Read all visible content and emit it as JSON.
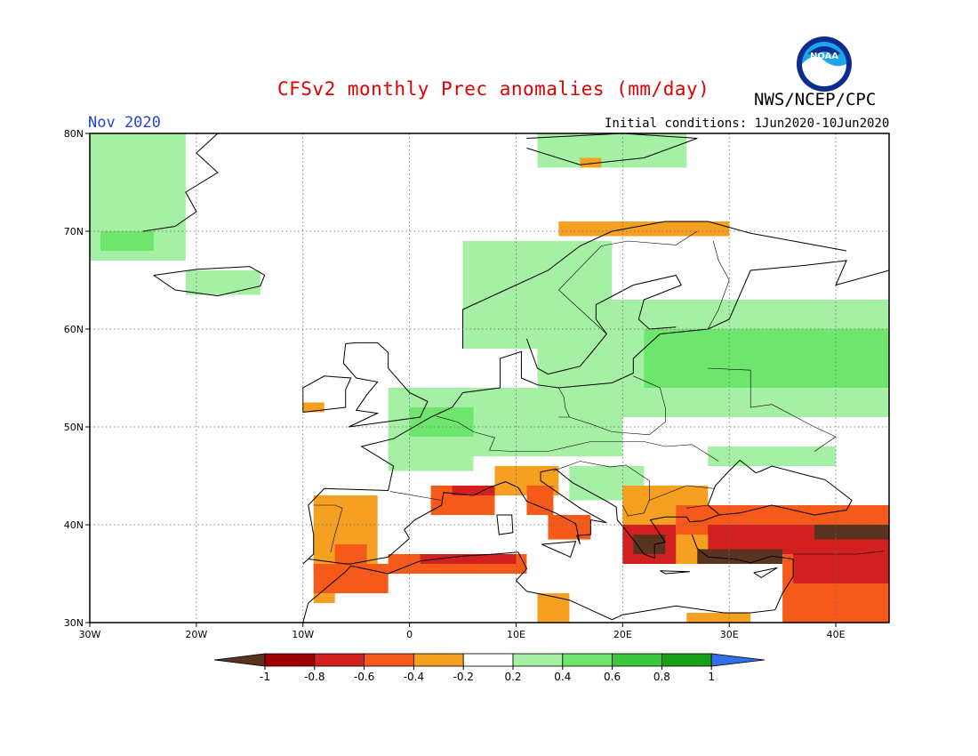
{
  "title": "CFSv2 monthly Prec anomalies (mm/day)",
  "agency": "NWS/NCEP/CPC",
  "logo_text": "NOAA",
  "month": "Nov 2020",
  "initial_conditions": "Initial conditions: 1Jun2020-10Jun2020",
  "colors": {
    "title": "#e00000",
    "month": "#2244dd",
    "land_outline": "#000000",
    "grid": "#666666"
  },
  "map": {
    "lon_range": [
      -30,
      45
    ],
    "lat_range": [
      30,
      80
    ],
    "lat_ticks": [
      {
        "value": 80,
        "label": "80N"
      },
      {
        "value": 70,
        "label": "70N"
      },
      {
        "value": 60,
        "label": "60N"
      },
      {
        "value": 50,
        "label": "50N"
      },
      {
        "value": 40,
        "label": "40N"
      },
      {
        "value": 30,
        "label": "30N"
      }
    ],
    "lon_ticks": [
      {
        "value": -30,
        "label": "30W"
      },
      {
        "value": -20,
        "label": "20W"
      },
      {
        "value": -10,
        "label": "10W"
      },
      {
        "value": 0,
        "label": "0"
      },
      {
        "value": 10,
        "label": "10E"
      },
      {
        "value": 20,
        "label": "20E"
      },
      {
        "value": 30,
        "label": "30E"
      },
      {
        "value": 40,
        "label": "40E"
      }
    ],
    "grid": "dotted",
    "anomaly_regions": [
      {
        "name": "Greenland east coast",
        "lon": [
          -30,
          -21
        ],
        "lat": [
          67,
          80
        ],
        "level": 0.3
      },
      {
        "name": "Greenland east coast core",
        "lon": [
          -29,
          -24
        ],
        "lat": [
          68,
          70
        ],
        "level": 0.5
      },
      {
        "name": "Iceland",
        "lon": [
          -21,
          -14
        ],
        "lat": [
          63.5,
          66
        ],
        "level": 0.3
      },
      {
        "name": "Norway",
        "lon": [
          5,
          19
        ],
        "lat": [
          58,
          69
        ],
        "level": 0.3
      },
      {
        "name": "N Scandinavia coast",
        "lon": [
          14,
          30
        ],
        "lat": [
          69.5,
          71
        ],
        "level": -0.3
      },
      {
        "name": "Svalbard",
        "lon": [
          12,
          26
        ],
        "lat": [
          76.5,
          80
        ],
        "level": 0.3
      },
      {
        "name": "Svalbard south spot",
        "lon": [
          16,
          18
        ],
        "lat": [
          76.5,
          77.5
        ],
        "level": -0.3
      },
      {
        "name": "Baltic / W Russia",
        "lon": [
          12,
          45
        ],
        "lat": [
          51,
          63
        ],
        "level": 0.3
      },
      {
        "name": "Baltic core",
        "lon": [
          22,
          45
        ],
        "lat": [
          54,
          60
        ],
        "level": 0.5
      },
      {
        "name": "Central Europe",
        "lon": [
          -2,
          20
        ],
        "lat": [
          47,
          54
        ],
        "level": 0.3
      },
      {
        "name": "Benelux core",
        "lon": [
          0,
          6
        ],
        "lat": [
          49,
          52
        ],
        "level": 0.5
      },
      {
        "name": "France W",
        "lon": [
          -2,
          6
        ],
        "lat": [
          45.5,
          49
        ],
        "level": 0.3
      },
      {
        "name": "Balkans N",
        "lon": [
          15,
          22
        ],
        "lat": [
          42.5,
          46
        ],
        "level": 0.3
      },
      {
        "name": "Ukraine S",
        "lon": [
          28,
          40
        ],
        "lat": [
          46,
          48
        ],
        "level": 0.3
      },
      {
        "name": "Ireland SW spot",
        "lon": [
          -10,
          -8
        ],
        "lat": [
          51.5,
          52.5
        ],
        "level": -0.3
      },
      {
        "name": "Iberia",
        "lon": [
          -9,
          -3
        ],
        "lat": [
          35,
          43
        ],
        "level": -0.3
      },
      {
        "name": "Iberia core",
        "lon": [
          -7,
          -4
        ],
        "lat": [
          34,
          38
        ],
        "level": -0.5
      },
      {
        "name": "Iberia south coast",
        "lon": [
          -9,
          -2
        ],
        "lat": [
          33,
          36
        ],
        "level": -0.5
      },
      {
        "name": "NE Spain / Gulf of Lion",
        "lon": [
          2,
          8
        ],
        "lat": [
          41,
          44
        ],
        "level": -0.5
      },
      {
        "name": "Ligurian core",
        "lon": [
          4,
          9
        ],
        "lat": [
          43,
          44
        ],
        "level": -0.7
      },
      {
        "name": "Italy W",
        "lon": [
          8,
          14
        ],
        "lat": [
          43,
          46
        ],
        "level": -0.3
      },
      {
        "name": "Italy central core",
        "lon": [
          11,
          13.5
        ],
        "lat": [
          41,
          44
        ],
        "level": -0.5
      },
      {
        "name": "S Italy",
        "lon": [
          13,
          17
        ],
        "lat": [
          38.5,
          41
        ],
        "level": -0.5
      },
      {
        "name": "N Africa coast",
        "lon": [
          -2,
          11
        ],
        "lat": [
          35,
          37
        ],
        "level": -0.5
      },
      {
        "name": "N Africa coast core",
        "lon": [
          1,
          10
        ],
        "lat": [
          36,
          37
        ],
        "level": -0.7
      },
      {
        "name": "Libya spots",
        "lon": [
          12,
          15
        ],
        "lat": [
          30,
          33
        ],
        "level": -0.3
      },
      {
        "name": "Balkans S / Aegean",
        "lon": [
          20,
          28
        ],
        "lat": [
          36,
          44
        ],
        "level": -0.3
      },
      {
        "name": "Greece core",
        "lon": [
          20,
          25
        ],
        "lat": [
          36,
          40
        ],
        "level": -0.7
      },
      {
        "name": "Aegean extreme",
        "lon": [
          21,
          24
        ],
        "lat": [
          37,
          39
        ],
        "level": -1.1
      },
      {
        "name": "Turkey N",
        "lon": [
          25,
          45
        ],
        "lat": [
          39,
          42
        ],
        "level": -0.5
      },
      {
        "name": "Turkey core",
        "lon": [
          28,
          45
        ],
        "lat": [
          37,
          40
        ],
        "level": -0.7
      },
      {
        "name": "Turkey extreme E",
        "lon": [
          38,
          45
        ],
        "lat": [
          38.5,
          40
        ],
        "level": -1.1
      },
      {
        "name": "Turkey S coast extreme",
        "lon": [
          27,
          35
        ],
        "lat": [
          36,
          37.5
        ],
        "level": -1.1
      },
      {
        "name": "Middle East",
        "lon": [
          35,
          45
        ],
        "lat": [
          30,
          37
        ],
        "level": -0.5
      },
      {
        "name": "Middle East core",
        "lon": [
          36,
          45
        ],
        "lat": [
          34,
          37
        ],
        "level": -0.7
      },
      {
        "name": "Egypt / Levant south",
        "lon": [
          26,
          32
        ],
        "lat": [
          30,
          31
        ],
        "level": -0.3
      },
      {
        "name": "Sahara spot",
        "lon": [
          -9,
          -7
        ],
        "lat": [
          32,
          33
        ],
        "level": -0.3
      }
    ],
    "cities_note": ""
  },
  "colorbar": {
    "labels": [
      "-1",
      "-0.8",
      "-0.6",
      "-0.4",
      "-0.2",
      "0.2",
      "0.4",
      "0.6",
      "0.8",
      "1"
    ],
    "colors": [
      "#5a3320",
      "#a10000",
      "#d22020",
      "#f55a1a",
      "#f5a020",
      "#ffffff",
      "#a6f0a6",
      "#6ee66e",
      "#3cc83c",
      "#16a016",
      "#1a8a1a",
      "#3070e8"
    ]
  }
}
